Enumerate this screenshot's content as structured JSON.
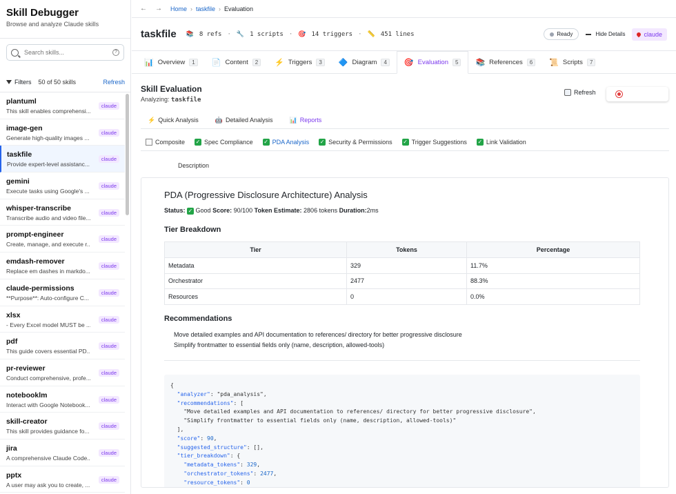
{
  "sidebar": {
    "title": "Skill Debugger",
    "subtitle": "Browse and analyze Claude skills",
    "search_placeholder": "Search skills...",
    "filters_label": "Filters",
    "count_label": "50 of 50 skills",
    "refresh_label": "Refresh",
    "items": [
      {
        "name": "plantuml",
        "desc": "This skill enables comprehensi...",
        "badge": "claude"
      },
      {
        "name": "image-gen",
        "desc": "Generate high-quality images ...",
        "badge": "claude"
      },
      {
        "name": "taskfile",
        "desc": "Provide expert-level assistanc...",
        "badge": "claude"
      },
      {
        "name": "gemini",
        "desc": "Execute tasks using Google's ...",
        "badge": "claude"
      },
      {
        "name": "whisper-transcribe",
        "desc": "Transcribe audio and video file...",
        "badge": "claude"
      },
      {
        "name": "prompt-engineer",
        "desc": "Create, manage, and execute r...",
        "badge": "claude"
      },
      {
        "name": "emdash-remover",
        "desc": "Replace em dashes in markdo...",
        "badge": "claude"
      },
      {
        "name": "claude-permissions",
        "desc": "**Purpose**: Auto-configure C...",
        "badge": "claude"
      },
      {
        "name": "xlsx",
        "desc": "- Every Excel model MUST be ...",
        "badge": "claude"
      },
      {
        "name": "pdf",
        "desc": "This guide covers essential PD...",
        "badge": "claude"
      },
      {
        "name": "pr-reviewer",
        "desc": "Conduct comprehensive, profe...",
        "badge": "claude"
      },
      {
        "name": "notebooklm",
        "desc": "Interact with Google Notebook...",
        "badge": "claude"
      },
      {
        "name": "skill-creator",
        "desc": "This skill provides guidance fo...",
        "badge": "claude"
      },
      {
        "name": "jira",
        "desc": "A comprehensive Claude Code...",
        "badge": "claude"
      },
      {
        "name": "pptx",
        "desc": "A user may ask you to create, ...",
        "badge": "claude"
      }
    ]
  },
  "breadcrumb": {
    "back": "←",
    "forward": "→",
    "home": "Home",
    "skill": "taskfile",
    "current": "Evaluation",
    "sep": "›"
  },
  "header": {
    "title": "taskfile",
    "refs": "8 refs",
    "scripts": "1 scripts",
    "triggers": "14 triggers",
    "lines": "451 lines",
    "status": "Ready",
    "hide_details": "Hide Details",
    "user": "claude"
  },
  "tabs": [
    {
      "label": "Overview",
      "num": "1"
    },
    {
      "label": "Content",
      "num": "2"
    },
    {
      "label": "Triggers",
      "num": "3"
    },
    {
      "label": "Diagram",
      "num": "4"
    },
    {
      "label": "Evaluation",
      "num": "5"
    },
    {
      "label": "References",
      "num": "6"
    },
    {
      "label": "Scripts",
      "num": "7"
    }
  ],
  "evaluation": {
    "title": "Skill Evaluation",
    "analyzing_prefix": "Analyzing:",
    "analyzing_skill": "taskfile",
    "refresh": "Refresh",
    "subtabs": [
      "Quick Analysis",
      "Detailed Analysis",
      "Reports"
    ],
    "checks": [
      "Composite",
      "Spec Compliance",
      "PDA Analysis",
      "Security & Permissions",
      "Trigger Suggestions",
      "Link Validation"
    ],
    "description_label": "Description"
  },
  "report": {
    "title": "PDA (Progressive Disclosure Architecture) Analysis",
    "status_label": "Status:",
    "status_value": "Good",
    "score_label": "Score:",
    "score_value": "90/100",
    "tokens_label": "Token Estimate:",
    "tokens_value": "2806 tokens",
    "duration_label": "Duration:",
    "duration_value": "2ms",
    "tier_heading": "Tier Breakdown",
    "columns": [
      "Tier",
      "Tokens",
      "Percentage"
    ],
    "rows": [
      [
        "Metadata",
        "329",
        "11.7%"
      ],
      [
        "Orchestrator",
        "2477",
        "88.3%"
      ],
      [
        "Resources",
        "0",
        "0.0%"
      ]
    ],
    "rec_heading": "Recommendations",
    "recommendations": [
      "Move detailed examples and API documentation to references/ directory for better progressive disclosure",
      "Simplify frontmatter to essential fields only (name, description, allowed-tools)"
    ]
  },
  "json_lines": [
    "{",
    "  \"analyzer\": \"pda_analysis\",",
    "  \"recommendations\": [",
    "    \"Move detailed examples and API documentation to references/ directory for better progressive disclosure\",",
    "    \"Simplify frontmatter to essential fields only (name, description, allowed-tools)\"",
    "  ],",
    "  \"score\": 90,",
    "  \"suggested_structure\": [],",
    "  \"tier_breakdown\": {",
    "    \"metadata_tokens\": 329,",
    "    \"orchestrator_tokens\": 2477,",
    "    \"resource_tokens\": 0"
  ]
}
